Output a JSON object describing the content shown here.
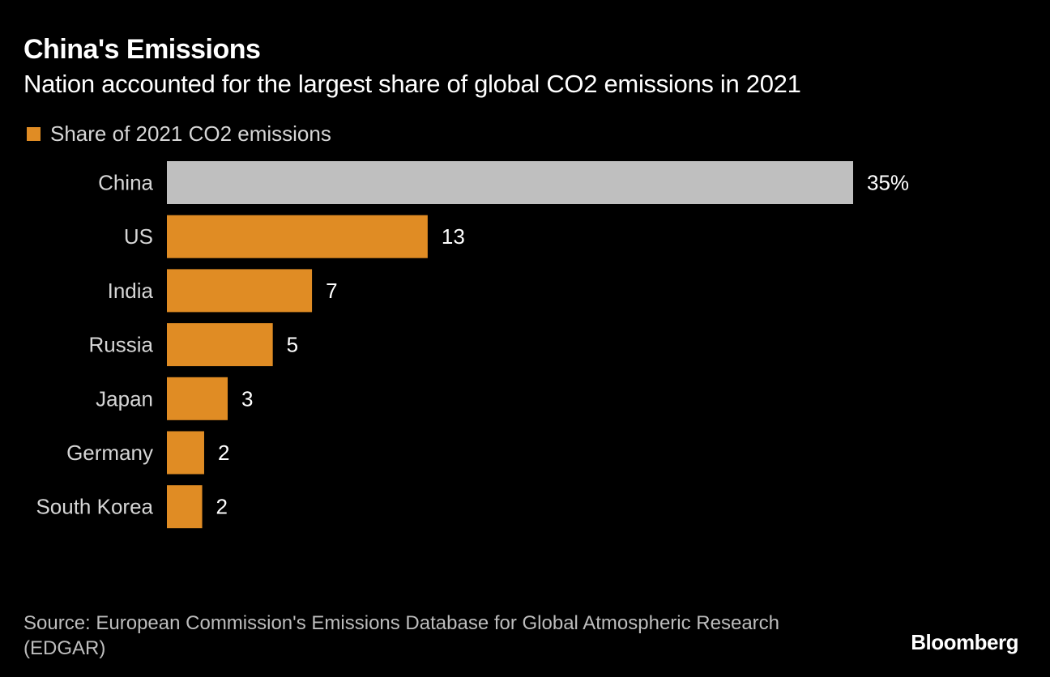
{
  "chart_data": {
    "type": "bar",
    "orientation": "horizontal",
    "title": "China's Emissions",
    "subtitle": "Nation accounted for the largest share of global CO2 emissions in 2021",
    "legend": {
      "label": "Share of 2021 CO2 emissions",
      "placement": "top-left"
    },
    "categories": [
      "China",
      "US",
      "India",
      "Russia",
      "Japan",
      "Germany",
      "South Korea"
    ],
    "values": [
      35,
      13.3,
      7.4,
      5.4,
      3.1,
      1.9,
      1.8
    ],
    "data_labels": [
      "35%",
      "13",
      "7",
      "5",
      "3",
      "2",
      "2"
    ],
    "xlim": [
      0,
      35
    ],
    "grid": false,
    "colors": {
      "highlight": "#BFBFBF",
      "bar": "#E08C24",
      "background": "#000000"
    },
    "highlighted": [
      "China"
    ],
    "source": "Source: European Commission's Emissions Database for Global Atmospheric Research (EDGAR)",
    "brand": "Bloomberg"
  }
}
